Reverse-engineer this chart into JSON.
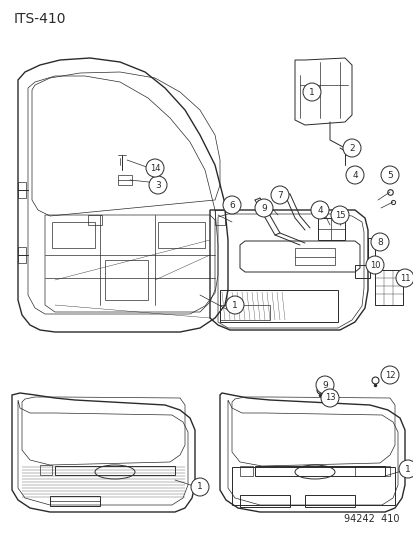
{
  "title": "ITS-410",
  "watermark": "94242  410",
  "bg_color": "#ffffff",
  "line_color": "#2a2a2a",
  "title_fontsize": 10,
  "watermark_fontsize": 7,
  "label_circle_r": 0.018,
  "label_fontsize": 6.5,
  "lw_main": 1.0,
  "lw_med": 0.7,
  "lw_thin": 0.5,
  "lw_hair": 0.3
}
